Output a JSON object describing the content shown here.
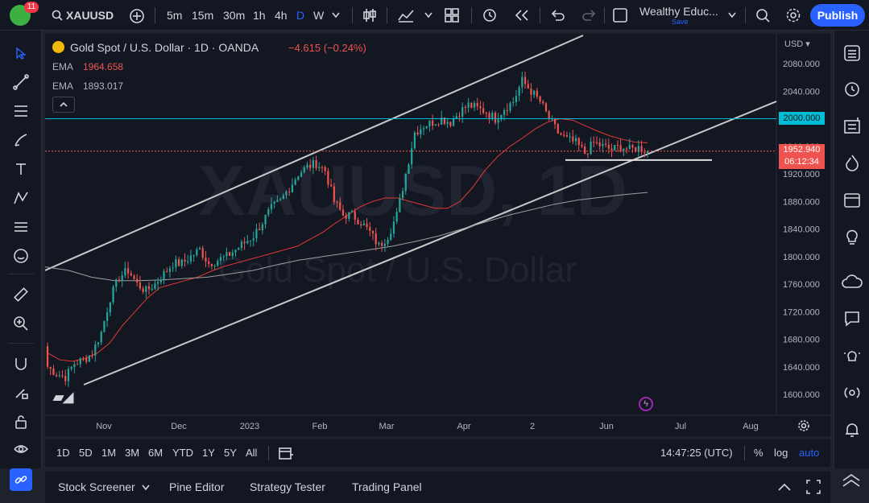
{
  "topbar": {
    "badge": "11",
    "symbol": "XAUUSD",
    "intervals": [
      "5m",
      "15m",
      "30m",
      "1h",
      "4h",
      "D",
      "W"
    ],
    "active_interval": "D",
    "layout_name": "Wealthy Educ...",
    "layout_status": "Save",
    "publish_label": "Publish"
  },
  "legend": {
    "title": "Gold Spot / U.S. Dollar · 1D · OANDA",
    "change": "−4.615 (−0.24%)",
    "ema1_label": "EMA",
    "ema1_value": "1964.658",
    "ema2_label": "EMA",
    "ema2_value": "1893.017"
  },
  "watermark": {
    "symbol": "XAUUSD, 1D",
    "name": "Gold Spot / U.S. Dollar"
  },
  "price_axis": {
    "currency": "USD",
    "ticks": [
      "2080.000",
      "2040.000",
      "2000.000",
      "1960.000",
      "1920.000",
      "1880.000",
      "1840.000",
      "1800.000",
      "1760.000",
      "1720.000",
      "1680.000",
      "1640.000",
      "1600.000"
    ],
    "level_label": "2000.000",
    "last_price": "1952.940",
    "countdown": "06:12:34"
  },
  "time_axis": {
    "labels": [
      "Nov",
      "Dec",
      "2023",
      "Feb",
      "Mar",
      "Apr",
      "2",
      "Jun",
      "Jul",
      "Aug"
    ]
  },
  "timeframes": {
    "ranges": [
      "1D",
      "5D",
      "1M",
      "3M",
      "6M",
      "YTD",
      "1Y",
      "5Y",
      "All"
    ],
    "clock": "14:47:25 (UTC)",
    "percent": "%",
    "log": "log",
    "auto": "auto"
  },
  "bottom_tabs": [
    "Stock Screener",
    "Pine Editor",
    "Strategy Tester",
    "Trading Panel"
  ],
  "colors": {
    "up": "#26a69a",
    "down": "#ef5350",
    "ema_fast": "#e53935",
    "ema_slow": "#9e9e9e",
    "accent": "#2962ff",
    "level": "#00bcd4"
  },
  "chart_data": {
    "type": "candlestick",
    "ylim": [
      1580,
      2100
    ],
    "close_series": [
      1640,
      1630,
      1625,
      1645,
      1650,
      1660,
      1690,
      1740,
      1770,
      1780,
      1760,
      1750,
      1760,
      1775,
      1790,
      1790,
      1800,
      1810,
      1790,
      1795,
      1800,
      1810,
      1820,
      1830,
      1850,
      1870,
      1880,
      1900,
      1920,
      1930,
      1935,
      1925,
      1880,
      1860,
      1860,
      1850,
      1835,
      1815,
      1830,
      1860,
      1920,
      1980,
      1990,
      1995,
      2000,
      1995,
      2010,
      2020,
      2015,
      2010,
      2000,
      2015,
      2025,
      2055,
      2040,
      2025,
      2000,
      1980,
      1970,
      1965,
      1950,
      1965,
      1960,
      1955,
      1960,
      1955,
      1958,
      1953
    ],
    "ema_fast": [
      1660,
      1650,
      1648,
      1652,
      1660,
      1675,
      1700,
      1720,
      1740,
      1755,
      1760,
      1765,
      1770,
      1778,
      1785,
      1790,
      1795,
      1800,
      1805,
      1810,
      1815,
      1825,
      1835,
      1848,
      1860,
      1872,
      1880,
      1885,
      1885,
      1880,
      1875,
      1870,
      1870,
      1880,
      1900,
      1925,
      1945,
      1960,
      1972,
      1985,
      1995,
      2000,
      1998,
      1990,
      1982,
      1975,
      1970,
      1966,
      1965
    ],
    "ema_slow": [
      1785,
      1780,
      1770,
      1765,
      1765,
      1766,
      1768,
      1770,
      1775,
      1780,
      1788,
      1795,
      1800,
      1805,
      1810,
      1815,
      1822,
      1830,
      1840,
      1850,
      1860,
      1868,
      1876,
      1882,
      1886,
      1890,
      1893
    ],
    "horizontal_level": 2000,
    "support_level": 1940,
    "last_price": 1952.94
  }
}
